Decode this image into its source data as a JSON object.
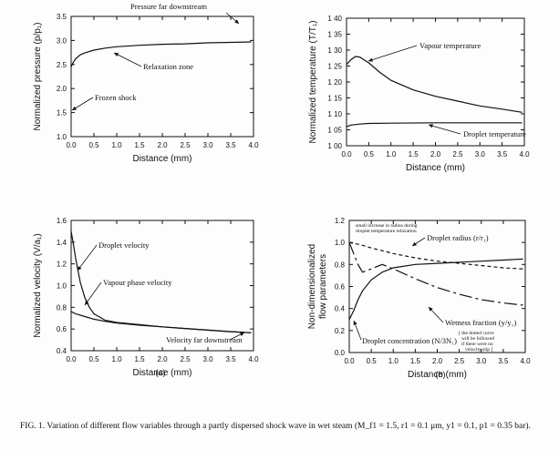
{
  "figure": {
    "caption": "FIG. 1. Variation of different flow variables through a partly dispersed shock wave in wet steam (M_f1 = 1.5, r1 = 0.1 μm, y1 = 0.1, p1 = 0.35 bar).",
    "colors": {
      "ink": "#111111",
      "paper": "#fdfdfd"
    }
  },
  "chart_data": [
    {
      "id": "p1",
      "type": "line",
      "xlabel": "Distance (mm)",
      "ylabel": "Normalized pressure (p/p₁)",
      "xlim": [
        0,
        4.0
      ],
      "ylim": [
        1.0,
        3.5
      ],
      "xticks": [
        "0.0",
        "0.5",
        "1.0",
        "1.5",
        "2.0",
        "2.5",
        "3.0",
        "3.5",
        "4.0"
      ],
      "yticks": [
        "1.0",
        "1.5",
        "2.0",
        "2.5",
        "3.0",
        "3.5"
      ],
      "series": [
        {
          "dash": "",
          "points": [
            [
              0,
              2.45
            ],
            [
              0.05,
              2.55
            ],
            [
              0.1,
              2.62
            ],
            [
              0.2,
              2.7
            ],
            [
              0.3,
              2.74
            ],
            [
              0.5,
              2.8
            ],
            [
              0.75,
              2.84
            ],
            [
              1.0,
              2.87
            ],
            [
              1.5,
              2.9
            ],
            [
              2.0,
              2.92
            ],
            [
              2.5,
              2.93
            ],
            [
              3.0,
              2.95
            ],
            [
              3.5,
              2.96
            ],
            [
              3.95,
              2.97
            ]
          ]
        }
      ],
      "annotations": [
        {
          "text": "Pressure far downstream",
          "at": [
            3.7,
            2.97
          ]
        },
        {
          "text": "Relaxation zone",
          "at": [
            1.0,
            2.87
          ]
        },
        {
          "text": "Frozen shock",
          "at": [
            0.02,
            1.58
          ]
        }
      ]
    },
    {
      "id": "p2",
      "type": "line",
      "xlabel": "Distance (mm)",
      "ylabel": "Normalized temperature (T/T₁)",
      "xlim": [
        0,
        4.0
      ],
      "ylim": [
        1.0,
        1.4
      ],
      "xticks": [
        "0.0",
        "0.5",
        "1.0",
        "1.5",
        "2.0",
        "2.5",
        "3.0",
        "3.5",
        "4.0"
      ],
      "yticks": [
        "1 00",
        "1 05",
        "1 10",
        "1 15",
        "1 20",
        "1 25",
        "1 30",
        "1 35",
        "1 40"
      ],
      "series": [
        {
          "dash": "",
          "points": [
            [
              0,
              1.255
            ],
            [
              0.1,
              1.27
            ],
            [
              0.2,
              1.28
            ],
            [
              0.3,
              1.278
            ],
            [
              0.5,
              1.26
            ],
            [
              0.75,
              1.23
            ],
            [
              1.0,
              1.205
            ],
            [
              1.5,
              1.175
            ],
            [
              2.0,
              1.155
            ],
            [
              2.5,
              1.14
            ],
            [
              3.0,
              1.125
            ],
            [
              3.5,
              1.115
            ],
            [
              3.95,
              1.105
            ]
          ]
        },
        {
          "dash": "",
          "points": [
            [
              0,
              1.06
            ],
            [
              0.1,
              1.065
            ],
            [
              0.3,
              1.068
            ],
            [
              0.5,
              1.07
            ],
            [
              1.0,
              1.071
            ],
            [
              2.0,
              1.072
            ],
            [
              3.0,
              1.072
            ],
            [
              3.95,
              1.072
            ]
          ]
        }
      ],
      "annotations": [
        {
          "text": "Vapour temperature",
          "at": [
            0.3,
            1.278
          ]
        },
        {
          "text": "Droplet temperature",
          "at": [
            3.0,
            1.072
          ]
        }
      ]
    },
    {
      "id": "p3",
      "type": "line",
      "xlabel": "Distance (mm)",
      "ylabel": "Normalized velocity (V/a₁)",
      "xlim": [
        0,
        4.0
      ],
      "ylim": [
        0.4,
        1.6
      ],
      "xticks": [
        "0.0",
        "0.5",
        "1.0",
        "1.5",
        "2.0",
        "2.5",
        "3.0",
        "3.5",
        "4.0"
      ],
      "yticks": [
        "0.4",
        "0.6",
        "0.8",
        "1.0",
        "1.2",
        "1.4",
        "1.6"
      ],
      "series": [
        {
          "dash": "",
          "points": [
            [
              0,
              1.5
            ],
            [
              0.05,
              1.38
            ],
            [
              0.1,
              1.25
            ],
            [
              0.2,
              1.03
            ],
            [
              0.3,
              0.89
            ],
            [
              0.4,
              0.8
            ],
            [
              0.5,
              0.74
            ],
            [
              0.75,
              0.68
            ],
            [
              1.0,
              0.66
            ],
            [
              1.5,
              0.64
            ],
            [
              2.0,
              0.62
            ],
            [
              2.5,
              0.605
            ],
            [
              3.0,
              0.59
            ],
            [
              3.5,
              0.575
            ],
            [
              3.95,
              0.565
            ]
          ]
        },
        {
          "dash": "",
          "points": [
            [
              0,
              0.76
            ],
            [
              0.1,
              0.74
            ],
            [
              0.3,
              0.715
            ],
            [
              0.5,
              0.69
            ],
            [
              0.75,
              0.67
            ],
            [
              1.0,
              0.655
            ],
            [
              1.5,
              0.635
            ],
            [
              2.0,
              0.62
            ],
            [
              2.5,
              0.605
            ],
            [
              3.0,
              0.59
            ],
            [
              3.5,
              0.575
            ],
            [
              3.95,
              0.565
            ]
          ]
        }
      ],
      "annotations": [
        {
          "text": "Droplet velocity",
          "at": [
            0.15,
            1.2
          ]
        },
        {
          "text": "Vapour phase velocity",
          "at": [
            0.3,
            0.8
          ]
        },
        {
          "text": "Velocity far downstream",
          "at": [
            3.9,
            0.565
          ]
        }
      ]
    },
    {
      "id": "p4",
      "type": "line",
      "xlabel": "Distance (mm)",
      "ylabel": "Non-dimensionalized flow parameters",
      "xlim": [
        0,
        4.0
      ],
      "ylim": [
        0.0,
        1.2
      ],
      "xticks": [
        "0.0",
        "0.5",
        "1.0",
        "1.5",
        "2.0",
        "2.5",
        "3.0",
        "3.5",
        "4.0"
      ],
      "yticks": [
        "0.0",
        "0.2",
        "0.4",
        "0.6",
        "0.8",
        "1.0",
        "1.2"
      ],
      "series": [
        {
          "dash": "4 3",
          "points": [
            [
              0,
              1.0
            ],
            [
              0.25,
              0.98
            ],
            [
              0.5,
              0.95
            ],
            [
              1.0,
              0.9
            ],
            [
              1.5,
              0.86
            ],
            [
              2.0,
              0.83
            ],
            [
              2.5,
              0.81
            ],
            [
              3.0,
              0.79
            ],
            [
              3.5,
              0.77
            ],
            [
              3.95,
              0.76
            ]
          ]
        },
        {
          "dash": "",
          "points": [
            [
              0,
              0.3
            ],
            [
              0.1,
              0.38
            ],
            [
              0.2,
              0.48
            ],
            [
              0.3,
              0.56
            ],
            [
              0.5,
              0.66
            ],
            [
              0.75,
              0.73
            ],
            [
              1.0,
              0.77
            ],
            [
              1.5,
              0.8
            ],
            [
              2.0,
              0.81
            ],
            [
              2.5,
              0.82
            ],
            [
              3.0,
              0.83
            ],
            [
              3.5,
              0.84
            ],
            [
              3.95,
              0.85
            ]
          ]
        },
        {
          "dash": "14 4 3 4",
          "points": [
            [
              0,
              1.0
            ],
            [
              0.1,
              0.9
            ],
            [
              0.2,
              0.8
            ],
            [
              0.3,
              0.73
            ],
            [
              0.5,
              0.76
            ],
            [
              0.75,
              0.8
            ],
            [
              1.0,
              0.76
            ],
            [
              1.5,
              0.67
            ],
            [
              2.0,
              0.59
            ],
            [
              2.5,
              0.53
            ],
            [
              3.0,
              0.48
            ],
            [
              3.5,
              0.45
            ],
            [
              3.95,
              0.43
            ]
          ]
        }
      ],
      "annotations": [
        {
          "text": "small increase in radius during",
          "at": [
            0.0,
            1.0
          ]
        },
        {
          "text": "droplet temperature relaxation",
          "at": [
            0.0,
            1.0
          ]
        },
        {
          "text": "Droplet radius (r/r₁)",
          "at": [
            2.2,
            0.84
          ]
        },
        {
          "text": "Wetness fraction (y/y₁)",
          "at": [
            2.6,
            0.51
          ]
        },
        {
          "text": "[ the dotted curve",
          "at": [
            0,
            0
          ]
        },
        {
          "text": "will be followed",
          "at": [
            0,
            0
          ]
        },
        {
          "text": "if there were no",
          "at": [
            0,
            0
          ]
        },
        {
          "text": "velocity slip ]",
          "at": [
            0,
            0
          ]
        },
        {
          "text": "Droplet concentration (N/3N₁)",
          "at": [
            0.05,
            0.33
          ]
        }
      ]
    }
  ],
  "panel_labels": [
    "(a)",
    "(b)"
  ]
}
